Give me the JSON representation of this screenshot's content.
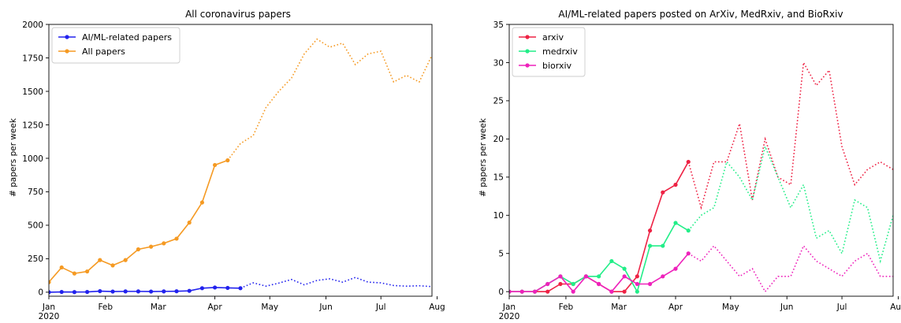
{
  "chart_data": [
    {
      "type": "line",
      "title": "All coronavirus papers",
      "ylabel": "# papers per week",
      "xlabel": "",
      "ylim": [
        -30,
        2000
      ],
      "xlim_week": [
        0,
        30
      ],
      "yticks": [
        0,
        250,
        500,
        750,
        1000,
        1250,
        1500,
        1750,
        2000
      ],
      "xticks": [
        {
          "week": 0,
          "label": "Jan",
          "sublabel": "2020"
        },
        {
          "week": 4.43,
          "label": "Feb"
        },
        {
          "week": 8.57,
          "label": "Mar"
        },
        {
          "week": 13,
          "label": "Apr"
        },
        {
          "week": 17.3,
          "label": "May"
        },
        {
          "week": 21.7,
          "label": "Jun"
        },
        {
          "week": 26,
          "label": "Jul"
        },
        {
          "week": 30.4,
          "label": "Aug"
        }
      ],
      "legend_position": "top-left",
      "series": [
        {
          "name": "AI/ML-related papers",
          "color": "#2222ee",
          "values": [
            0,
            2,
            1,
            2,
            8,
            5,
            6,
            6,
            5,
            6,
            7,
            10,
            30,
            35,
            32,
            30,
            70,
            45,
            68,
            95,
            55,
            88,
            100,
            75,
            110,
            75,
            70,
            50,
            45,
            48,
            42,
            50
          ],
          "solid_until": 15
        },
        {
          "name": "All papers",
          "color": "#f59a23",
          "values": [
            75,
            185,
            140,
            155,
            240,
            200,
            240,
            320,
            340,
            365,
            400,
            520,
            670,
            950,
            985,
            1110,
            1170,
            1380,
            1500,
            1600,
            1780,
            1890,
            1830,
            1860,
            1700,
            1780,
            1800,
            1570,
            1620,
            1570,
            1770
          ],
          "solid_until": 14
        }
      ]
    },
    {
      "type": "line",
      "title": "AI/ML-related papers posted on ArXiv, MedRxiv, and BioRxiv",
      "ylabel": "# papers per week",
      "xlabel": "",
      "ylim": [
        -0.6,
        35
      ],
      "xlim_week": [
        0,
        30
      ],
      "yticks": [
        0,
        5,
        10,
        15,
        20,
        25,
        30,
        35
      ],
      "xticks": [
        {
          "week": 0,
          "label": "Jan",
          "sublabel": "2020"
        },
        {
          "week": 4.43,
          "label": "Feb"
        },
        {
          "week": 8.57,
          "label": "Mar"
        },
        {
          "week": 13,
          "label": "Apr"
        },
        {
          "week": 17.3,
          "label": "May"
        },
        {
          "week": 21.7,
          "label": "Jun"
        },
        {
          "week": 26,
          "label": "Jul"
        },
        {
          "week": 30.4,
          "label": "Aug"
        }
      ],
      "legend_position": "top-left",
      "series": [
        {
          "name": "arxiv",
          "color": "#ee2244",
          "values": [
            0,
            0,
            0,
            0,
            1,
            1,
            2,
            1,
            0,
            0,
            2,
            8,
            13,
            14,
            17,
            11,
            17,
            17,
            22,
            12,
            20,
            15,
            14,
            30,
            27,
            29,
            19,
            14,
            16,
            17,
            16,
            15
          ],
          "solid_until": 14
        },
        {
          "name": "medrxiv",
          "color": "#22ee88",
          "values": [
            0,
            0,
            0,
            1,
            2,
            1,
            2,
            2,
            4,
            3,
            0,
            6,
            6,
            9,
            8,
            10,
            11,
            17,
            15,
            12,
            19,
            15,
            11,
            14,
            7,
            8,
            5,
            12,
            11,
            4,
            10
          ],
          "solid_until": 14
        },
        {
          "name": "biorxiv",
          "color": "#ee22bb",
          "values": [
            0,
            0,
            0,
            1,
            2,
            0,
            2,
            1,
            0,
            2,
            1,
            1,
            2,
            3,
            5,
            4,
            6,
            4,
            2,
            3,
            0,
            2,
            2,
            6,
            4,
            3,
            2,
            4,
            5,
            2,
            2
          ],
          "solid_until": 14
        }
      ]
    }
  ]
}
